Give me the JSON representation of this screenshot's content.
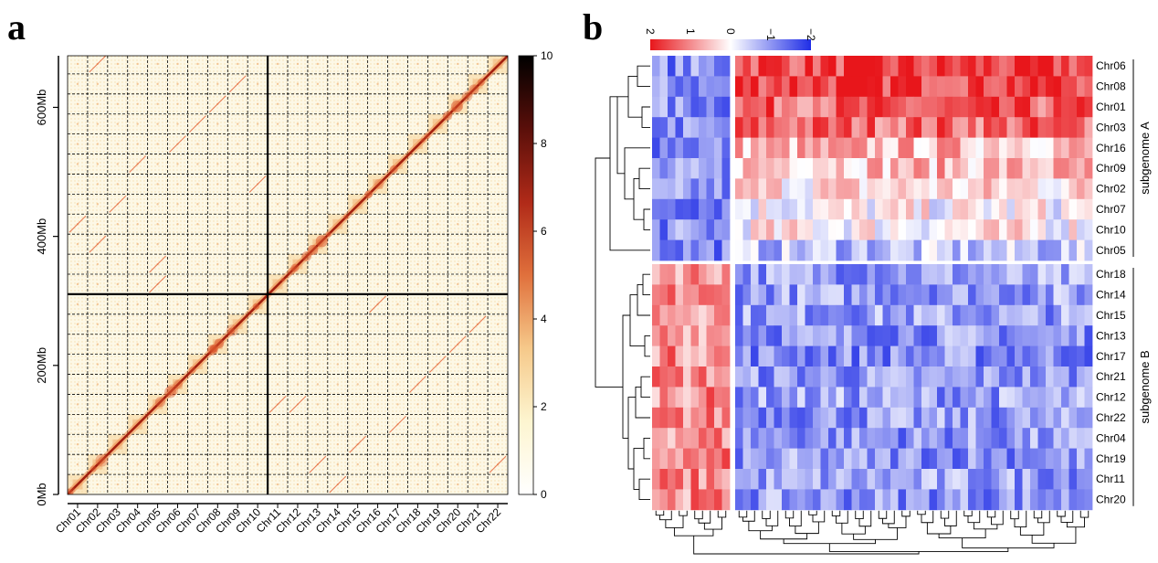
{
  "figure": {
    "panel_a_letter": "a",
    "panel_b_letter": "b"
  },
  "chart_data": [
    {
      "type": "heatmap",
      "panel": "a",
      "title": "",
      "xlabel": "",
      "ylabel": "",
      "chromosomes": [
        "Chr01",
        "Chr02",
        "Chr03",
        "Chr04",
        "Chr05",
        "Chr06",
        "Chr07",
        "Chr08",
        "Chr09",
        "Chr10",
        "Chr11",
        "Chr12",
        "Chr13",
        "Chr14",
        "Chr15",
        "Chr16",
        "Chr17",
        "Chr18",
        "Chr19",
        "Chr20",
        "Chr21",
        "Chr22"
      ],
      "yticks": [
        {
          "label": "0Mb",
          "value": 0
        },
        {
          "label": "200Mb",
          "value": 200
        },
        {
          "label": "400Mb",
          "value": 400
        },
        {
          "label": "600Mb",
          "value": 600
        }
      ],
      "ylim": [
        0,
        680
      ],
      "subgenome_boundary_chromosome": "Chr10",
      "colorbar": {
        "min": 0,
        "max": 10,
        "ticks": [
          0,
          2,
          4,
          6,
          8,
          10
        ],
        "colors": [
          "#ffffff",
          "#fdf5d0",
          "#f6c98a",
          "#e0703c",
          "#b02a18",
          "#5a0f0a",
          "#000000"
        ]
      }
    },
    {
      "type": "heatmap",
      "panel": "b",
      "title": "",
      "rows": [
        "Chr06",
        "Chr08",
        "Chr01",
        "Chr03",
        "Chr16",
        "Chr09",
        "Chr02",
        "Chr07",
        "Chr10",
        "Chr05",
        "Chr18",
        "Chr14",
        "Chr15",
        "Chr13",
        "Chr17",
        "Chr21",
        "Chr12",
        "Chr22",
        "Chr04",
        "Chr19",
        "Chr11",
        "Chr20"
      ],
      "groups": [
        {
          "name": "subgenome A",
          "rows": [
            "Chr06",
            "Chr08",
            "Chr01",
            "Chr03",
            "Chr16",
            "Chr09",
            "Chr02",
            "Chr07",
            "Chr10",
            "Chr05"
          ]
        },
        {
          "name": "subgenome B",
          "rows": [
            "Chr18",
            "Chr14",
            "Chr15",
            "Chr13",
            "Chr17",
            "Chr21",
            "Chr12",
            "Chr22",
            "Chr04",
            "Chr19",
            "Chr11",
            "Chr20"
          ]
        }
      ],
      "n_columns": 56,
      "left_cluster_columns": 10,
      "colorbar": {
        "min": -2,
        "max": 2,
        "ticks": [
          2,
          1,
          0,
          -1,
          -2
        ],
        "tick_labels": [
          "2",
          "1",
          "0",
          "−1",
          "−2"
        ],
        "colors": {
          "high": "#e8161b",
          "mid": "#ffffff",
          "low": "#1f2de6"
        }
      }
    }
  ]
}
